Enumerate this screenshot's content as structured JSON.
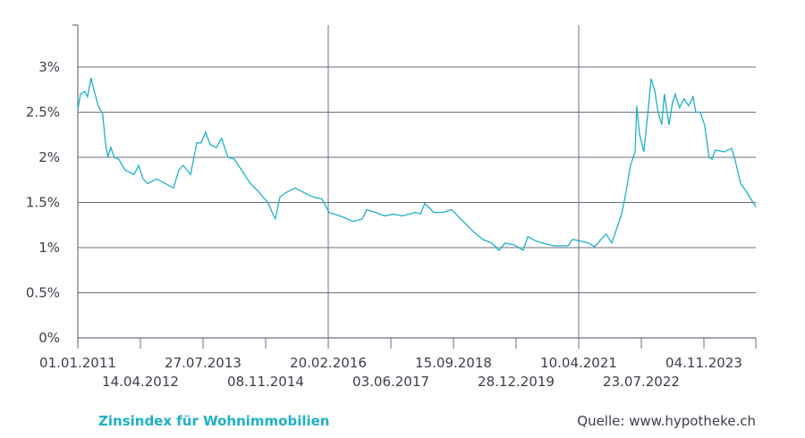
{
  "chart_data": {
    "type": "line",
    "title": "Zinsindex für Wohnimmobilien",
    "source": "Quelle: www.hypotheke.ch",
    "xlabel": "",
    "ylabel": "",
    "ylim": [
      0,
      3.45
    ],
    "yticks": [
      0,
      0.5,
      1,
      1.5,
      2,
      2.5,
      3
    ],
    "ytick_labels": [
      "0%",
      "0.5%",
      "1%",
      "1.5%",
      "2%",
      "2.5%",
      "3%"
    ],
    "xlim": [
      "2011-01-01",
      "2024-11-27"
    ],
    "xticks": [
      "2011-01-01",
      "2012-04-14",
      "2013-07-27",
      "2014-11-08",
      "2016-02-20",
      "2017-06-03",
      "2018-09-15",
      "2019-12-28",
      "2021-04-10",
      "2022-07-23",
      "2023-11-04"
    ],
    "xtick_labels": [
      "01.01.2011",
      "14.04.2012",
      "27.07.2013",
      "08.11.2014",
      "20.02.2016",
      "03.06.2017",
      "15.09.2018",
      "28.12.2019",
      "10.04.2021",
      "23.07.2022",
      "04.11.2023"
    ],
    "vertical_gridlines": [
      "2016-02-20",
      "2021-04-10"
    ],
    "horizontal_grid": true,
    "line_color": "#1eb1c6",
    "grid_color": "#6b6f80",
    "series": [
      {
        "x": [
          "2011-01-01",
          "2011-01-21",
          "2011-02-23",
          "2011-03-15",
          "2011-04-10",
          "2011-05-01",
          "2011-06-03",
          "2011-07-06",
          "2011-07-27",
          "2011-08-15",
          "2011-09-05",
          "2011-10-01",
          "2011-11-03",
          "2011-12-20",
          "2012-02-26",
          "2012-04-01",
          "2012-05-04",
          "2012-06-07",
          "2012-08-12",
          "2012-10-18",
          "2012-12-17",
          "2013-01-27",
          "2013-03-01",
          "2013-04-24",
          "2013-06-10",
          "2013-07-13",
          "2013-08-15",
          "2013-09-18",
          "2013-11-04",
          "2013-12-13",
          "2014-01-30",
          "2014-03-18",
          "2014-05-11",
          "2014-07-17",
          "2014-09-22",
          "2014-11-28",
          "2015-01-01",
          "2015-01-20",
          "2015-02-23",
          "2015-04-10",
          "2015-06-16",
          "2015-08-22",
          "2015-10-28",
          "2016-01-03",
          "2016-02-26",
          "2016-05-17",
          "2016-08-26",
          "2016-11-01",
          "2016-12-04",
          "2017-02-09",
          "2017-04-17",
          "2017-06-23",
          "2017-08-28",
          "2017-12-06",
          "2018-01-10",
          "2018-02-12",
          "2018-04-20",
          "2018-06-26",
          "2018-09-01",
          "2018-10-04",
          "2018-12-10",
          "2019-02-16",
          "2019-04-23",
          "2019-06-29",
          "2019-08-22",
          "2019-10-08",
          "2019-12-14",
          "2020-02-19",
          "2020-03-25",
          "2020-05-31",
          "2020-08-05",
          "2020-10-11",
          "2021-01-19",
          "2021-02-22",
          "2021-04-30",
          "2021-06-22",
          "2021-08-08",
          "2021-09-24",
          "2021-11-02",
          "2021-12-14",
          "2022-01-22",
          "2022-02-25",
          "2022-03-30",
          "2022-05-03",
          "2022-06-06",
          "2022-06-19",
          "2022-07-09",
          "2022-08-11",
          "2022-09-14",
          "2022-10-04",
          "2022-10-30",
          "2022-11-26",
          "2022-12-23",
          "2023-01-12",
          "2023-02-15",
          "2023-03-13",
          "2023-04-03",
          "2023-05-06",
          "2023-06-09",
          "2023-07-12",
          "2023-08-15",
          "2023-09-04",
          "2023-10-07",
          "2023-11-09",
          "2023-12-12",
          "2024-01-03",
          "2024-01-29",
          "2024-04-05",
          "2024-05-30",
          "2024-06-26",
          "2024-08-05",
          "2024-09-21",
          "2024-11-27"
        ],
        "y": [
          2.53,
          2.7,
          2.73,
          2.67,
          2.88,
          2.75,
          2.57,
          2.48,
          2.16,
          2.0,
          2.11,
          2.0,
          1.98,
          1.86,
          1.81,
          1.91,
          1.76,
          1.71,
          1.76,
          1.71,
          1.66,
          1.86,
          1.91,
          1.81,
          2.16,
          2.16,
          2.28,
          2.14,
          2.11,
          2.21,
          2.0,
          1.98,
          1.86,
          1.71,
          1.61,
          1.49,
          1.37,
          1.32,
          1.56,
          1.61,
          1.66,
          1.61,
          1.56,
          1.54,
          1.39,
          1.35,
          1.29,
          1.32,
          1.42,
          1.39,
          1.35,
          1.37,
          1.35,
          1.39,
          1.37,
          1.49,
          1.39,
          1.39,
          1.42,
          1.37,
          1.27,
          1.17,
          1.09,
          1.05,
          0.97,
          1.05,
          1.03,
          0.97,
          1.12,
          1.07,
          1.04,
          1.02,
          1.02,
          1.09,
          1.07,
          1.05,
          1.01,
          1.09,
          1.15,
          1.05,
          1.22,
          1.37,
          1.61,
          1.91,
          2.06,
          2.57,
          2.26,
          2.06,
          2.55,
          2.87,
          2.75,
          2.5,
          2.36,
          2.7,
          2.36,
          2.6,
          2.7,
          2.55,
          2.65,
          2.57,
          2.67,
          2.5,
          2.5,
          2.36,
          2.0,
          1.98,
          2.08,
          2.06,
          2.1,
          1.96,
          1.71,
          1.61,
          1.45
        ]
      }
    ]
  }
}
